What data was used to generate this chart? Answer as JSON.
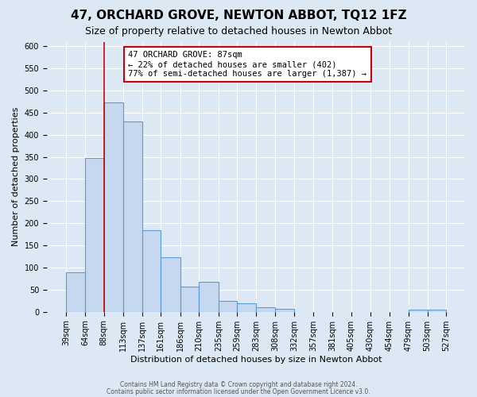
{
  "title": "47, ORCHARD GROVE, NEWTON ABBOT, TQ12 1FZ",
  "subtitle": "Size of property relative to detached houses in Newton Abbot",
  "xlabel": "Distribution of detached houses by size in Newton Abbot",
  "ylabel": "Number of detached properties",
  "footer_line1": "Contains HM Land Registry data © Crown copyright and database right 2024.",
  "footer_line2": "Contains public sector information licensed under the Open Government Licence v3.0.",
  "bin_edges": [
    39,
    64,
    88,
    113,
    137,
    161,
    186,
    210,
    235,
    259,
    283,
    308,
    332,
    357,
    381,
    405,
    430,
    454,
    479,
    503,
    527
  ],
  "bin_labels": [
    "39sqm",
    "64sqm",
    "88sqm",
    "113sqm",
    "137sqm",
    "161sqm",
    "186sqm",
    "210sqm",
    "235sqm",
    "259sqm",
    "283sqm",
    "308sqm",
    "332sqm",
    "357sqm",
    "381sqm",
    "405sqm",
    "430sqm",
    "454sqm",
    "479sqm",
    "503sqm",
    "527sqm"
  ],
  "bar_heights": [
    90,
    348,
    473,
    430,
    185,
    123,
    57,
    68,
    25,
    20,
    11,
    6,
    0,
    0,
    0,
    0,
    0,
    0,
    5,
    5
  ],
  "bar_color": "#c5d8f0",
  "bar_edge_color": "#5b9bd5",
  "property_line_x": 88,
  "property_line_color": "#cc0000",
  "annotation_line1": "47 ORCHARD GROVE: 87sqm",
  "annotation_line2": "← 22% of detached houses are smaller (402)",
  "annotation_line3": "77% of semi-detached houses are larger (1,387) →",
  "annotation_box_color": "#cc0000",
  "ylim": [
    0,
    610
  ],
  "yticks": [
    0,
    50,
    100,
    150,
    200,
    250,
    300,
    350,
    400,
    450,
    500,
    550,
    600
  ],
  "bg_color": "#dde8f5",
  "plot_bg_color": "#dde8f5",
  "grid_color": "#ffffff",
  "title_fontsize": 11,
  "subtitle_fontsize": 9,
  "axis_label_fontsize": 8,
  "tick_fontsize": 7
}
